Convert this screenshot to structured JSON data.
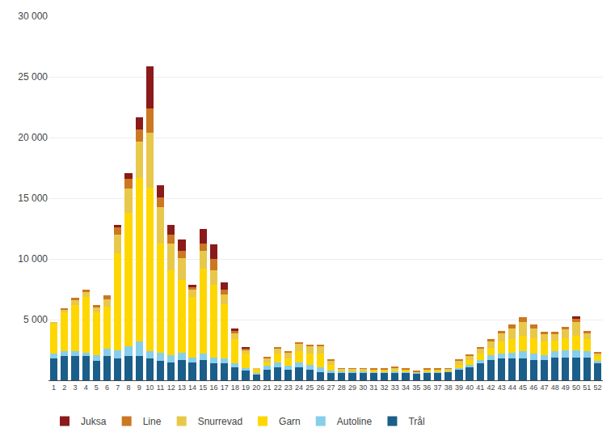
{
  "chart_data": {
    "type": "bar",
    "stacked": true,
    "categories": [
      "1",
      "2",
      "3",
      "4",
      "5",
      "6",
      "7",
      "8",
      "9",
      "10",
      "11",
      "12",
      "13",
      "14",
      "15",
      "16",
      "17",
      "18",
      "19",
      "20",
      "21",
      "22",
      "23",
      "24",
      "25",
      "26",
      "27",
      "28",
      "29",
      "30",
      "31",
      "32",
      "33",
      "34",
      "35",
      "36",
      "37",
      "38",
      "39",
      "40",
      "41",
      "42",
      "43",
      "44",
      "45",
      "46",
      "47",
      "48",
      "49",
      "50",
      "51",
      "52"
    ],
    "series": [
      {
        "name": "Trål",
        "color": "#1B5E8A",
        "values": [
          1800,
          2000,
          2000,
          2000,
          1600,
          2000,
          1800,
          2000,
          2000,
          1800,
          1600,
          1500,
          1700,
          1500,
          1700,
          1400,
          1400,
          1100,
          800,
          500,
          900,
          1100,
          900,
          1100,
          900,
          700,
          600,
          650,
          650,
          650,
          650,
          650,
          650,
          650,
          550,
          650,
          650,
          700,
          900,
          1100,
          1400,
          1700,
          1800,
          1800,
          1800,
          1700,
          1700,
          1900,
          1900,
          1900,
          1900,
          1400
        ]
      },
      {
        "name": "Autoline",
        "color": "#87CEEB",
        "values": [
          400,
          400,
          400,
          300,
          500,
          600,
          700,
          800,
          1200,
          600,
          700,
          600,
          600,
          400,
          500,
          500,
          400,
          300,
          200,
          100,
          300,
          400,
          300,
          400,
          400,
          400,
          200,
          100,
          100,
          100,
          50,
          50,
          100,
          50,
          50,
          50,
          50,
          50,
          100,
          200,
          300,
          400,
          400,
          500,
          600,
          500,
          400,
          500,
          600,
          600,
          500,
          200
        ]
      },
      {
        "name": "Garn",
        "color": "#FFD700",
        "values": [
          2500,
          3200,
          3800,
          4600,
          3500,
          3500,
          8000,
          11000,
          13500,
          13500,
          9000,
          7000,
          6000,
          5000,
          7000,
          6000,
          4500,
          2000,
          1200,
          300,
          300,
          700,
          600,
          900,
          900,
          1100,
          500,
          100,
          100,
          100,
          100,
          100,
          100,
          100,
          50,
          100,
          100,
          100,
          300,
          400,
          500,
          600,
          1000,
          1100,
          1300,
          1300,
          1100,
          900,
          1000,
          1200,
          1000,
          400
        ]
      },
      {
        "name": "Snurrevad",
        "color": "#E8C84A",
        "values": [
          100,
          200,
          400,
          400,
          400,
          600,
          1500,
          2000,
          3000,
          4500,
          3000,
          2200,
          1800,
          600,
          1500,
          1200,
          800,
          500,
          300,
          100,
          300,
          400,
          500,
          600,
          600,
          600,
          300,
          100,
          100,
          100,
          100,
          100,
          200,
          100,
          50,
          100,
          100,
          100,
          300,
          300,
          400,
          500,
          700,
          900,
          1100,
          800,
          600,
          500,
          700,
          1100,
          500,
          200
        ]
      },
      {
        "name": "Line",
        "color": "#CC7722",
        "values": [
          0,
          100,
          200,
          200,
          200,
          300,
          600,
          800,
          1000,
          2000,
          800,
          700,
          600,
          200,
          600,
          900,
          400,
          200,
          100,
          0,
          100,
          100,
          100,
          100,
          100,
          100,
          100,
          50,
          50,
          50,
          50,
          50,
          50,
          50,
          50,
          50,
          50,
          50,
          100,
          100,
          100,
          200,
          200,
          300,
          400,
          300,
          200,
          200,
          200,
          300,
          200,
          100
        ]
      },
      {
        "name": "Juksa",
        "color": "#8B1A1A",
        "values": [
          0,
          0,
          0,
          0,
          0,
          0,
          200,
          500,
          1000,
          3500,
          1000,
          800,
          900,
          200,
          1200,
          1200,
          600,
          200,
          100,
          0,
          0,
          0,
          0,
          0,
          0,
          0,
          0,
          0,
          0,
          0,
          0,
          0,
          0,
          0,
          0,
          0,
          0,
          0,
          0,
          0,
          0,
          0,
          0,
          0,
          0,
          0,
          0,
          0,
          0,
          200,
          0,
          0
        ]
      }
    ],
    "ylim": [
      0,
      30000
    ],
    "yticks": [
      {
        "value": 5000,
        "label": "5 000"
      },
      {
        "value": 10000,
        "label": "10 000"
      },
      {
        "value": 15000,
        "label": "15 000"
      },
      {
        "value": 20000,
        "label": "20 000"
      },
      {
        "value": 25000,
        "label": "25 000"
      },
      {
        "value": 30000,
        "label": "30 000"
      }
    ],
    "grid": true,
    "legend": "bottom"
  }
}
